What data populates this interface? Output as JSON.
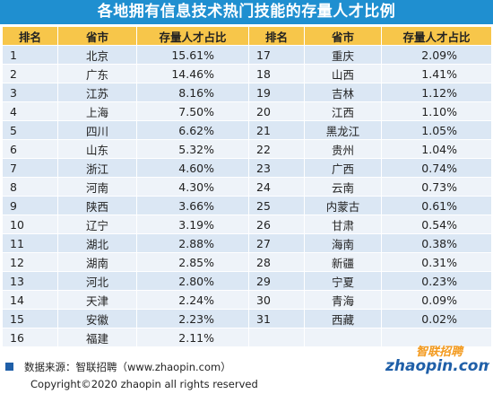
{
  "title": "各地拥有信息技术热门技能的存量人才比例",
  "headers": {
    "rank": "排名",
    "province": "省市",
    "ratio": "存量人才占比"
  },
  "rows_left": [
    {
      "rank": "1",
      "province": "北京",
      "ratio": "15.61%"
    },
    {
      "rank": "2",
      "province": "广东",
      "ratio": "14.46%"
    },
    {
      "rank": "3",
      "province": "江苏",
      "ratio": "8.16%"
    },
    {
      "rank": "4",
      "province": "上海",
      "ratio": "7.50%"
    },
    {
      "rank": "5",
      "province": "四川",
      "ratio": "6.62%"
    },
    {
      "rank": "6",
      "province": "山东",
      "ratio": "5.32%"
    },
    {
      "rank": "7",
      "province": "浙江",
      "ratio": "4.60%"
    },
    {
      "rank": "8",
      "province": "河南",
      "ratio": "4.30%"
    },
    {
      "rank": "9",
      "province": "陕西",
      "ratio": "3.66%"
    },
    {
      "rank": "10",
      "province": "辽宁",
      "ratio": "3.19%"
    },
    {
      "rank": "11",
      "province": "湖北",
      "ratio": "2.88%"
    },
    {
      "rank": "12",
      "province": "湖南",
      "ratio": "2.85%"
    },
    {
      "rank": "13",
      "province": "河北",
      "ratio": "2.80%"
    },
    {
      "rank": "14",
      "province": "天津",
      "ratio": "2.24%"
    },
    {
      "rank": "15",
      "province": "安徽",
      "ratio": "2.23%"
    },
    {
      "rank": "16",
      "province": "福建",
      "ratio": "2.11%"
    }
  ],
  "rows_right": [
    {
      "rank": "17",
      "province": "重庆",
      "ratio": "2.09%"
    },
    {
      "rank": "18",
      "province": "山西",
      "ratio": "1.41%"
    },
    {
      "rank": "19",
      "province": "吉林",
      "ratio": "1.12%"
    },
    {
      "rank": "20",
      "province": "江西",
      "ratio": "1.10%"
    },
    {
      "rank": "21",
      "province": "黑龙江",
      "ratio": "1.05%"
    },
    {
      "rank": "22",
      "province": "贵州",
      "ratio": "1.04%"
    },
    {
      "rank": "23",
      "province": "广西",
      "ratio": "0.74%"
    },
    {
      "rank": "24",
      "province": "云南",
      "ratio": "0.73%"
    },
    {
      "rank": "25",
      "province": "内蒙古",
      "ratio": "0.61%"
    },
    {
      "rank": "26",
      "province": "甘肃",
      "ratio": "0.54%"
    },
    {
      "rank": "27",
      "province": "海南",
      "ratio": "0.38%"
    },
    {
      "rank": "28",
      "province": "新疆",
      "ratio": "0.31%"
    },
    {
      "rank": "29",
      "province": "宁夏",
      "ratio": "0.23%"
    },
    {
      "rank": "30",
      "province": "青海",
      "ratio": "0.09%"
    },
    {
      "rank": "31",
      "province": "西藏",
      "ratio": "0.02%"
    },
    {
      "rank": "",
      "province": "",
      "ratio": ""
    }
  ],
  "footer": {
    "source": "数据来源：智联招聘（www.zhaopin.com）",
    "copyright": "Copyright©2020 zhaopin all rights reserved"
  },
  "logo": {
    "brand_cn": "智联招聘",
    "brand_en": "zhaopin.com",
    "colors": {
      "orange": "#f39a1e",
      "blue": "#1f5fa8"
    }
  },
  "colors": {
    "title_bg": "#1f8fd0",
    "header_bg": "#f7c64a",
    "row_odd": "#dbe7f4",
    "row_even": "#eef3f9"
  }
}
